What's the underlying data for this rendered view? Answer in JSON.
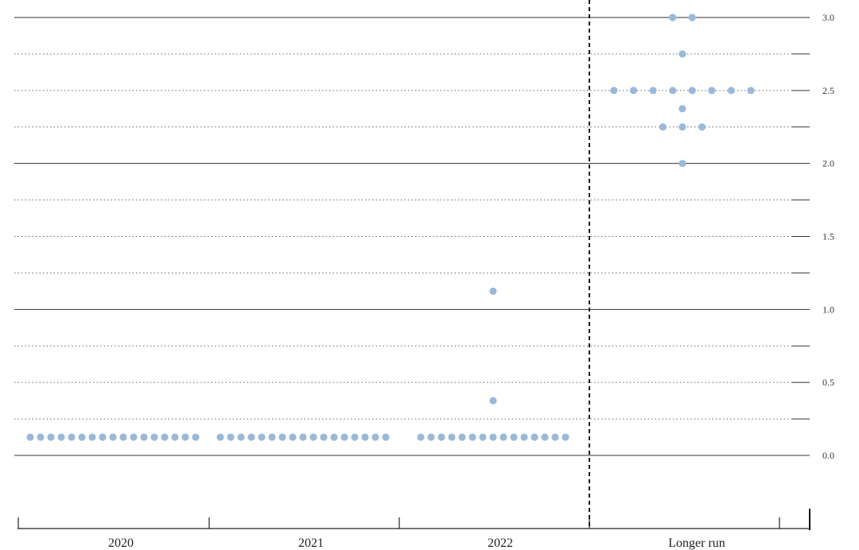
{
  "chart_data": {
    "type": "scatter",
    "title": "",
    "xlabel": "",
    "ylabel": "",
    "ylim": [
      -0.55,
      3.0
    ],
    "y_ticks": [
      {
        "value": 3.0,
        "label": "3.0",
        "major": true
      },
      {
        "value": 2.75,
        "label": "",
        "major": false
      },
      {
        "value": 2.5,
        "label": "2.5",
        "major": false
      },
      {
        "value": 2.25,
        "label": "",
        "major": false
      },
      {
        "value": 2.0,
        "label": "2.0",
        "major": true
      },
      {
        "value": 1.75,
        "label": "",
        "major": false
      },
      {
        "value": 1.5,
        "label": "1.5",
        "major": false
      },
      {
        "value": 1.25,
        "label": "",
        "major": false
      },
      {
        "value": 1.0,
        "label": "1.0",
        "major": true
      },
      {
        "value": 0.75,
        "label": "",
        "major": false
      },
      {
        "value": 0.5,
        "label": "0.5",
        "major": false
      },
      {
        "value": 0.25,
        "label": "",
        "major": false
      },
      {
        "value": 0.0,
        "label": "0.0",
        "major": true
      }
    ],
    "categories": [
      "2020",
      "2021",
      "2022",
      "Longer run"
    ],
    "dot_color": "#9bb8d9",
    "grid": true,
    "dots": [
      {
        "category": "2020",
        "rows": [
          {
            "value": 0.125,
            "count": 17
          }
        ]
      },
      {
        "category": "2021",
        "rows": [
          {
            "value": 0.125,
            "count": 17
          }
        ]
      },
      {
        "category": "2022",
        "rows": [
          {
            "value": 1.125,
            "count": 1
          },
          {
            "value": 0.375,
            "count": 1
          },
          {
            "value": 0.125,
            "count": 15
          }
        ]
      },
      {
        "category": "Longer run",
        "rows": [
          {
            "value": 3.0,
            "count": 2
          },
          {
            "value": 2.75,
            "count": 1
          },
          {
            "value": 2.5,
            "count": 8
          },
          {
            "value": 2.375,
            "count": 1
          },
          {
            "value": 2.25,
            "count": 3
          },
          {
            "value": 2.0,
            "count": 1
          }
        ]
      }
    ]
  }
}
